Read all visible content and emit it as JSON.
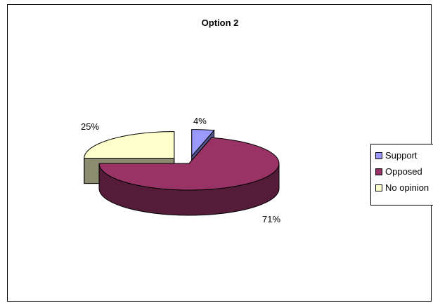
{
  "chart_data": {
    "type": "pie",
    "title": "Option 2",
    "categories": [
      "Support",
      "Opposed",
      "No opinion"
    ],
    "values": [
      4,
      71,
      25
    ],
    "data_labels": [
      "4%",
      "71%",
      "25%"
    ],
    "colors": {
      "Support": "#9999ff",
      "Opposed": "#993366",
      "No opinion": "#ffffcc"
    },
    "legend_placement": "right",
    "three_d": true,
    "exploded": true
  }
}
